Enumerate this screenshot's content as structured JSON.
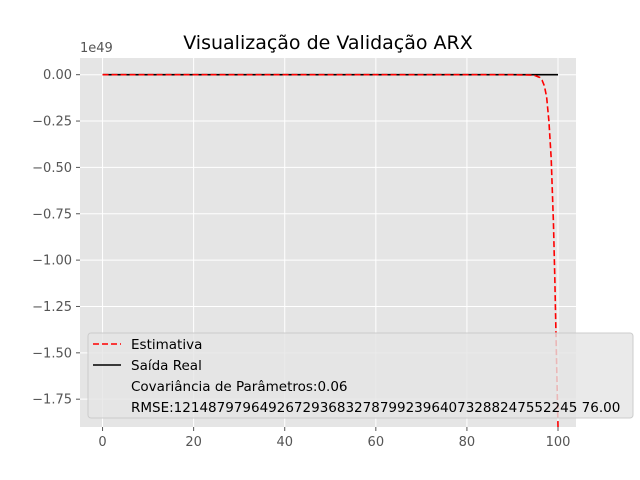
{
  "chart_data": {
    "type": "line",
    "title": "Visualização de Validação ARX",
    "offset_text": "1e49",
    "xlim": [
      -4.95,
      103.95
    ],
    "ylim": [
      -1.9,
      0.09
    ],
    "x_ticks": [
      0,
      20,
      40,
      60,
      80,
      100
    ],
    "x_tick_labels": [
      "0",
      "20",
      "40",
      "60",
      "80",
      "100"
    ],
    "y_ticks": [
      0.0,
      -0.25,
      -0.5,
      -0.75,
      -1.0,
      -1.25,
      -1.5,
      -1.75
    ],
    "y_tick_labels": [
      "0.00",
      "−0.25",
      "−0.50",
      "−0.75",
      "−1.00",
      "−1.25",
      "−1.50",
      "−1.75"
    ],
    "grid": true,
    "legend_position": "lower-right",
    "series": [
      {
        "name": "Estimativa",
        "color": "#ff0000",
        "style": "dashed",
        "x": [
          0,
          10,
          20,
          30,
          40,
          50,
          60,
          70,
          80,
          90,
          94,
          95,
          96,
          96.5,
          97,
          97.5,
          98,
          98.5,
          99,
          99.3,
          99.6,
          100
        ],
        "y": [
          0,
          0,
          0,
          0,
          0,
          0,
          0,
          0,
          0,
          0,
          -0.002,
          -0.005,
          -0.015,
          -0.03,
          -0.06,
          -0.12,
          -0.25,
          -0.45,
          -0.8,
          -1.1,
          -1.45,
          -1.9
        ]
      },
      {
        "name": "Saída Real",
        "color": "#000000",
        "style": "solid",
        "x": [
          0,
          100
        ],
        "y": [
          0,
          0
        ]
      }
    ],
    "legend_extra": [
      "Covariância de Parâmetros:0.06",
      "RMSE:12148797964926729368327879923964073288247552245 76.00"
    ]
  }
}
